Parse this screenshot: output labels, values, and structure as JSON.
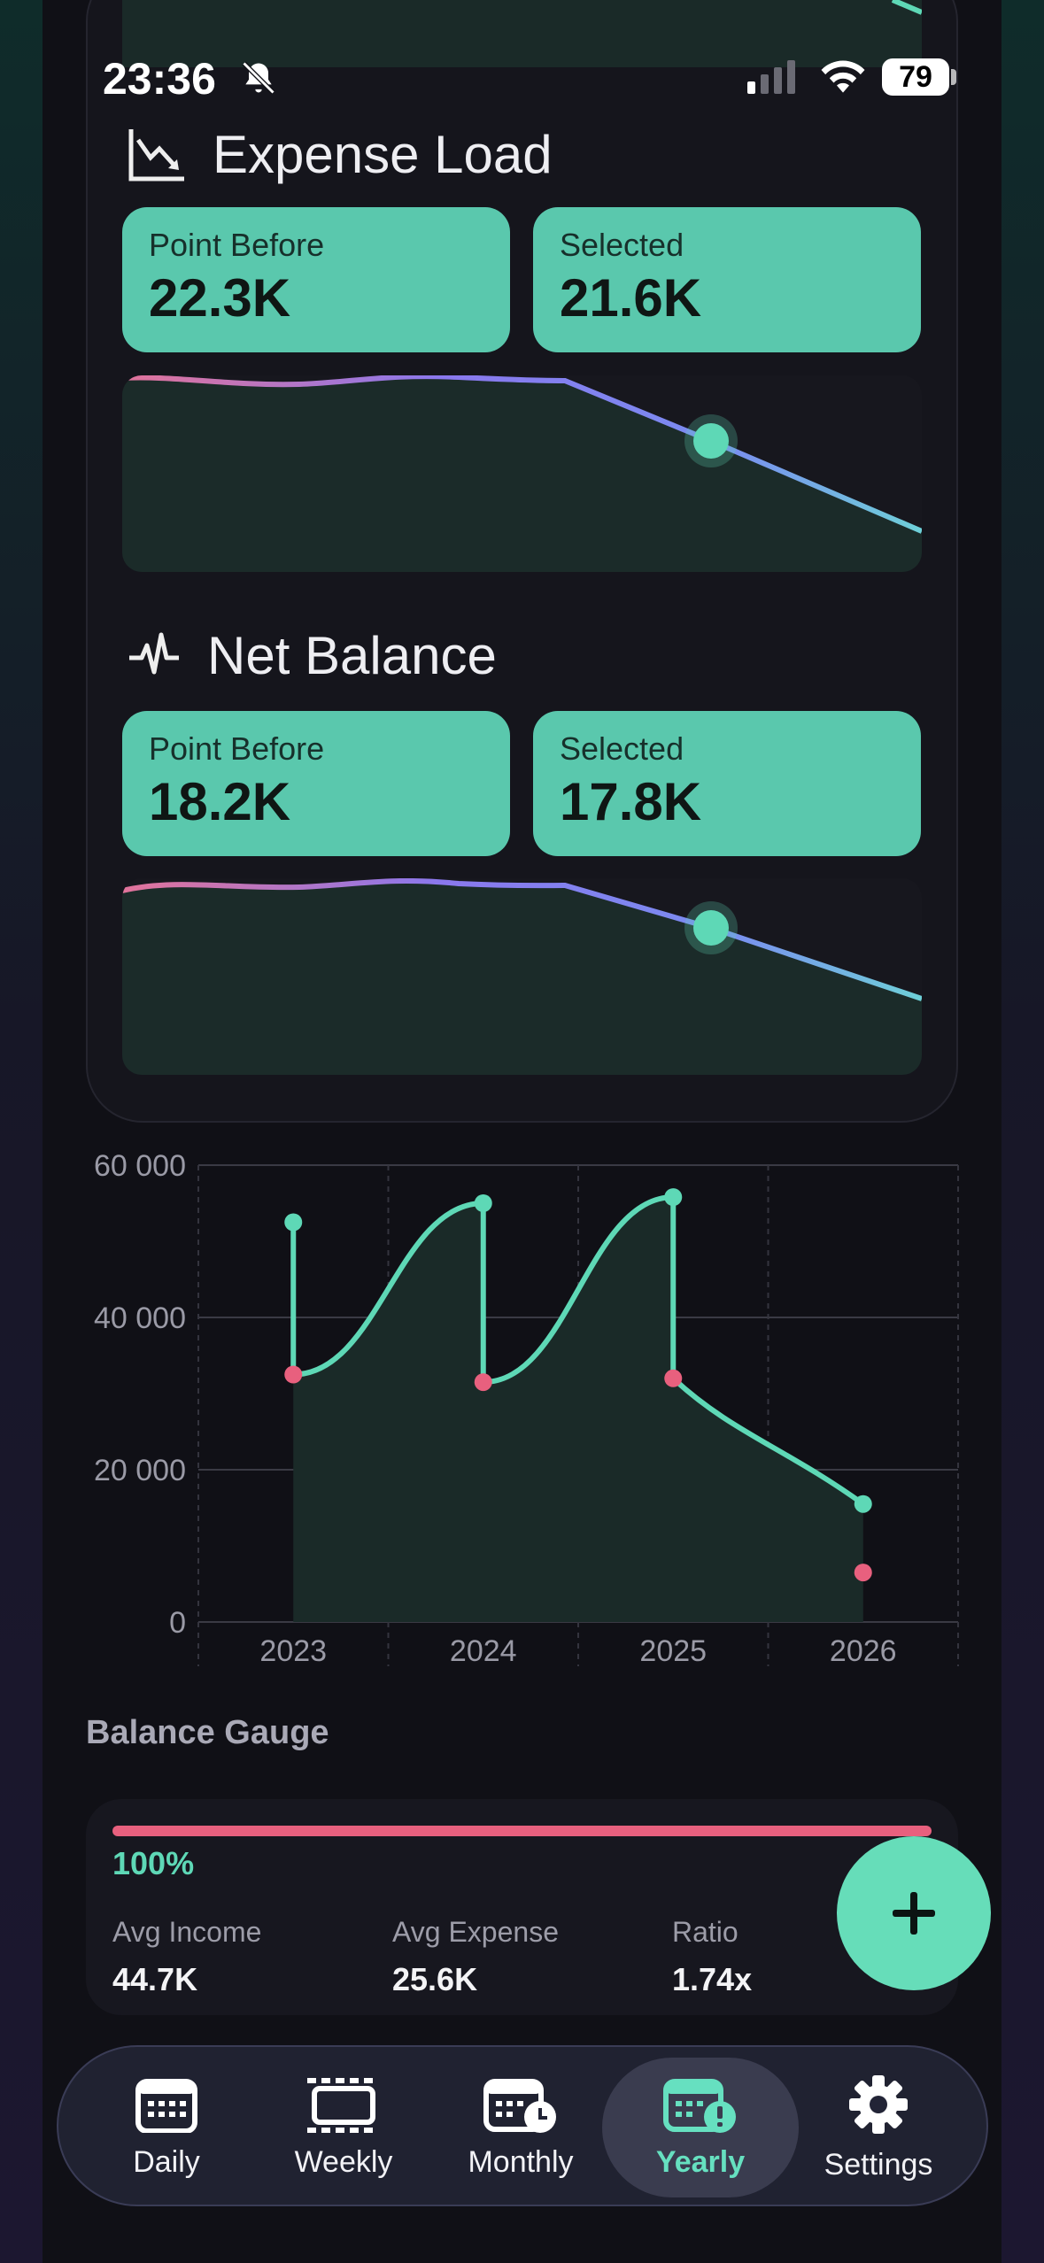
{
  "status_bar": {
    "time": "23:36",
    "battery": "79"
  },
  "sections": [
    {
      "title": "Expense Load",
      "icon": "chart-down-icon",
      "point_before_label": "Point Before",
      "point_before_value": "22.3K",
      "selected_label": "Selected",
      "selected_value": "21.6K"
    },
    {
      "title": "Net Balance",
      "icon": "pulse-icon",
      "point_before_label": "Point Before",
      "point_before_value": "18.2K",
      "selected_label": "Selected",
      "selected_value": "17.8K"
    }
  ],
  "chart_data": {
    "type": "line",
    "x": [
      "2023",
      "2024",
      "2025",
      "2026"
    ],
    "ylim": [
      0,
      60000
    ],
    "yticks": [
      "0",
      "20 000",
      "40 000",
      "60 000"
    ],
    "series": [
      {
        "values": [
          52500,
          55000,
          55800,
          15500
        ],
        "color": "#5ed8b6"
      },
      {
        "values": [
          32500,
          31500,
          32000,
          6500
        ],
        "color": "#e8607e"
      }
    ],
    "grid": true
  },
  "gauge": {
    "title": "Balance Gauge",
    "percent": "100%",
    "fill_fraction": 1.0,
    "avg_income_label": "Avg Income",
    "avg_income_value": "44.7K",
    "avg_expense_label": "Avg Expense",
    "avg_expense_value": "25.6K",
    "ratio_label": "Ratio",
    "ratio_value": "1.74x"
  },
  "nav": {
    "items": [
      {
        "label": "Daily",
        "icon": "calendar-icon"
      },
      {
        "label": "Weekly",
        "icon": "week-icon"
      },
      {
        "label": "Monthly",
        "icon": "calendar-clock-icon"
      },
      {
        "label": "Yearly",
        "icon": "calendar-alert-icon",
        "active": true
      },
      {
        "label": "Settings",
        "icon": "gear-icon"
      }
    ]
  },
  "colors": {
    "accent": "#5ed8b6",
    "expense": "#e8607e",
    "card": "#5ac8ad"
  }
}
